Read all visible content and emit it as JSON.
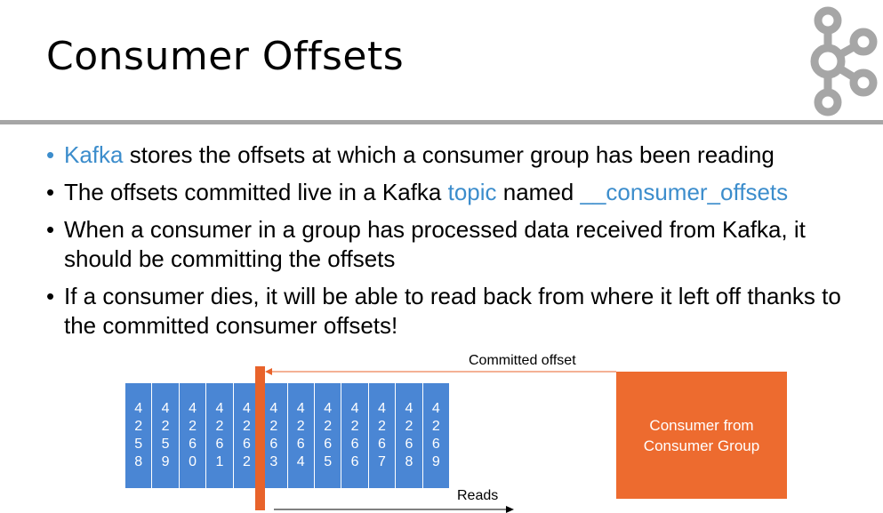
{
  "title": "Consumer Offsets",
  "bullets": [
    {
      "parts": [
        {
          "text": "Kafka",
          "highlight": true
        },
        {
          "text": " stores the offsets at which a consumer group has been reading",
          "highlight": false
        }
      ]
    },
    {
      "parts": [
        {
          "text": "The offsets committed live in a Kafka ",
          "highlight": false
        },
        {
          "text": "topic",
          "highlight": true
        },
        {
          "text": " named ",
          "highlight": false
        },
        {
          "text": "__consumer_offsets",
          "highlight": true
        }
      ]
    },
    {
      "parts": [
        {
          "text": "When a consumer in a group has processed data received from Kafka, it should be committing the offsets",
          "highlight": false
        }
      ]
    },
    {
      "parts": [
        {
          "text": "If a consumer dies, it will be able to read back from where it left off thanks to the committed consumer offsets!",
          "highlight": false
        }
      ]
    }
  ],
  "diagram": {
    "offsets": [
      "4258",
      "4259",
      "4260",
      "4261",
      "4262",
      "4263",
      "4264",
      "4265",
      "4266",
      "4267",
      "4268",
      "4269"
    ],
    "committed_offset_label": "Committed offset",
    "reads_label": "Reads",
    "consumer_line1": "Consumer from",
    "consumer_line2": "Consumer Group"
  },
  "colors": {
    "highlight": "#3c8dcc",
    "partition": "#4a86d4",
    "consumer": "#ed6b2f",
    "marker": "#e8632b",
    "rule": "#a6a6a6"
  },
  "logo_icon": "kafka-logo-icon"
}
